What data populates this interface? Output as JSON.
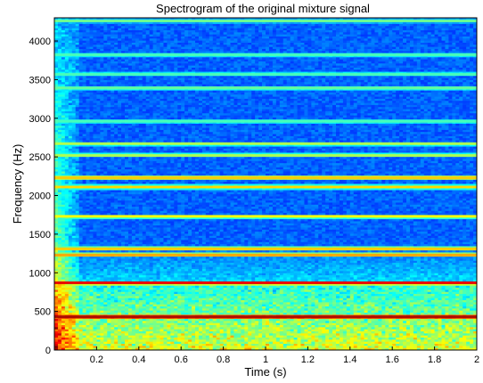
{
  "chart_data": {
    "type": "heatmap",
    "title": "Spectrogram of the original mixture signal",
    "xlabel": "Time (s)",
    "ylabel": "Frequency (Hz)",
    "xlim": [
      0,
      2
    ],
    "ylim": [
      0,
      4300
    ],
    "x_ticks": [
      "0.2",
      "0.4",
      "0.6",
      "0.8",
      "1",
      "1.2",
      "1.4",
      "1.6",
      "1.8",
      "2"
    ],
    "y_ticks": [
      "0",
      "500",
      "1000",
      "1500",
      "2000",
      "2500",
      "3000",
      "3500",
      "4000"
    ],
    "colormap": "jet",
    "grid": false,
    "harmonic_lines": [
      {
        "frequency": 430,
        "level": 0.97
      },
      {
        "frequency": 870,
        "level": 0.9
      },
      {
        "frequency": 1230,
        "level": 0.72
      },
      {
        "frequency": 1310,
        "level": 0.68
      },
      {
        "frequency": 1730,
        "level": 0.62
      },
      {
        "frequency": 2110,
        "level": 0.66
      },
      {
        "frequency": 2230,
        "level": 0.68
      },
      {
        "frequency": 2520,
        "level": 0.55
      },
      {
        "frequency": 2670,
        "level": 0.55
      },
      {
        "frequency": 2960,
        "level": 0.45
      },
      {
        "frequency": 3390,
        "level": 0.48
      },
      {
        "frequency": 3570,
        "level": 0.45
      },
      {
        "frequency": 3820,
        "level": 0.45
      },
      {
        "frequency": 4260,
        "level": 0.48
      }
    ]
  }
}
